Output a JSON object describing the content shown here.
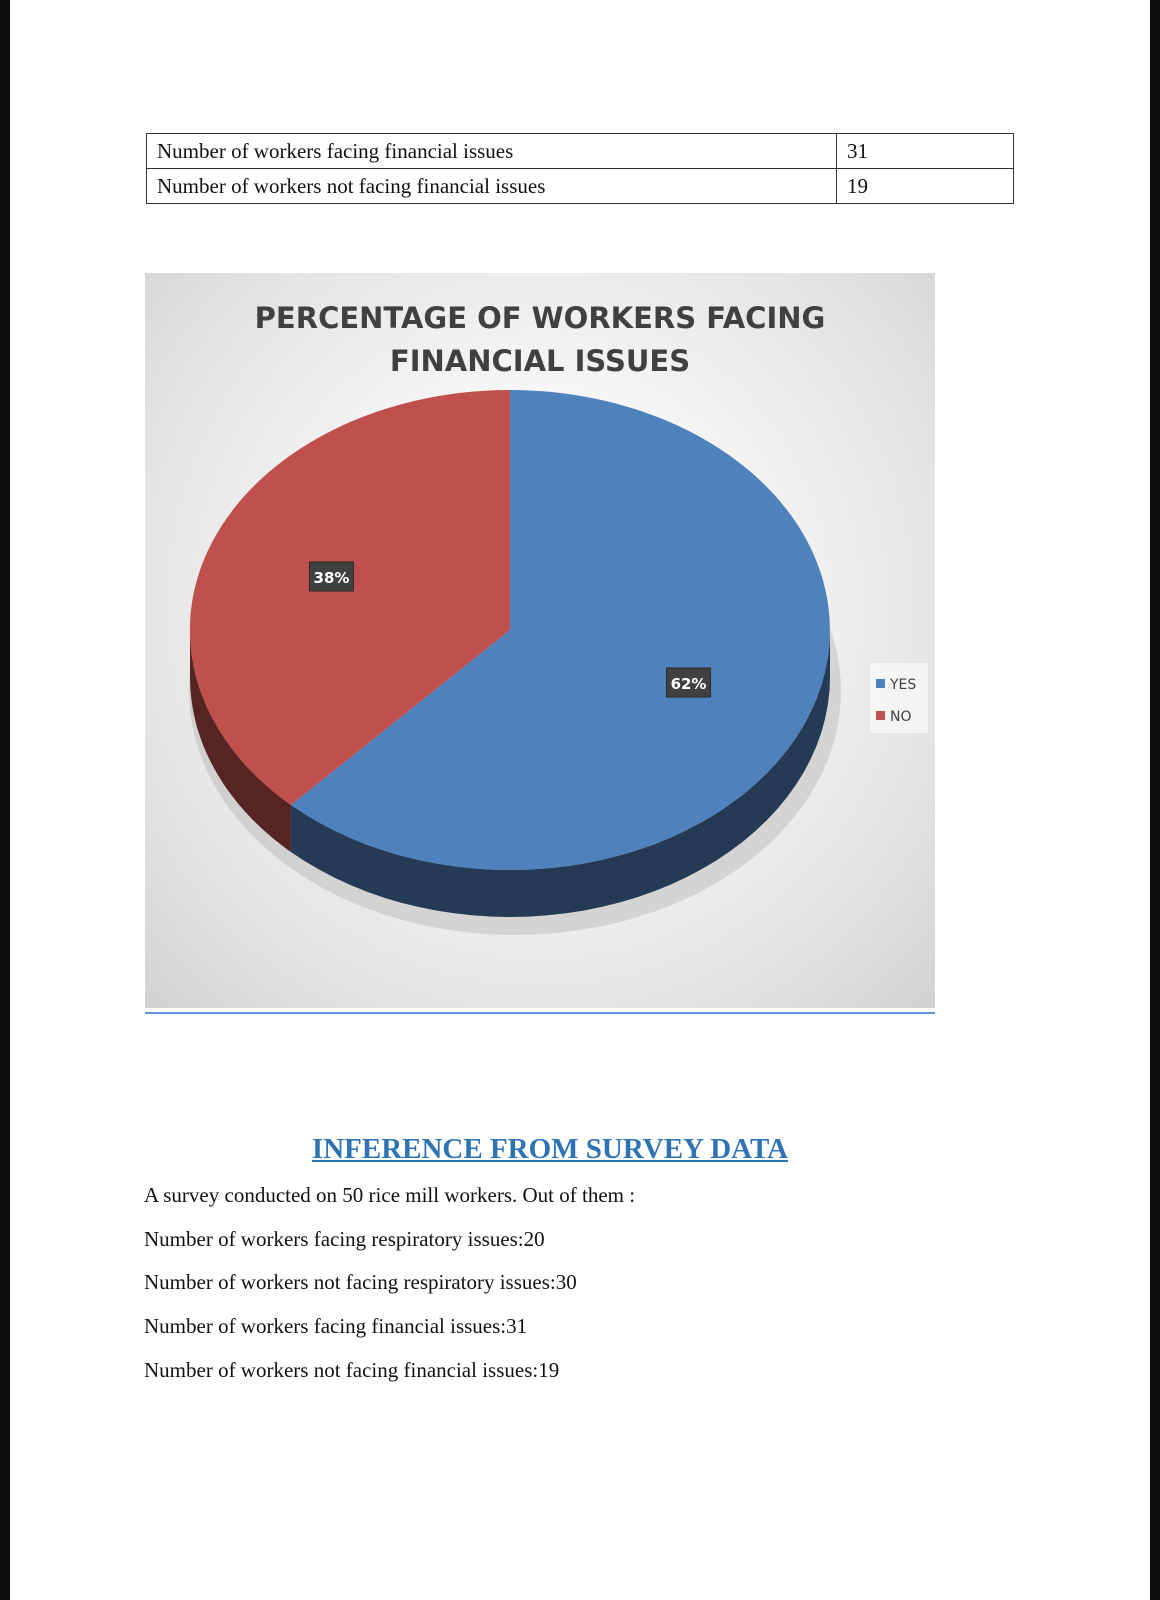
{
  "table": {
    "rows": [
      {
        "label": "Number of workers facing financial issues",
        "value": "31"
      },
      {
        "label": "Number of workers not facing financial issues",
        "value": "19"
      }
    ]
  },
  "chart_data": {
    "type": "pie",
    "title_line1": "PERCENTAGE OF WORKERS FACING",
    "title_line2": "FINANCIAL ISSUES",
    "slices": [
      {
        "name": "YES",
        "value": 62,
        "label": "62%",
        "color": "#4f81bd"
      },
      {
        "name": "NO",
        "value": 38,
        "label": "38%",
        "color": "#c0504d"
      }
    ],
    "legend": [
      "YES",
      "NO"
    ],
    "legend_position": "right",
    "style": "3d"
  },
  "inference": {
    "heading": "INFERENCE FROM SURVEY DATA",
    "lines": [
      "A survey conducted on 50 rice mill workers. Out of them :",
      "Number of workers facing respiratory issues:20",
      "Number of workers not facing respiratory issues:30",
      "Number of workers facing financial issues:31",
      "Number of workers not facing financial issues:19"
    ]
  }
}
